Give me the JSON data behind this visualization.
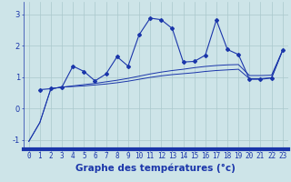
{
  "xlabel": "Graphe des températures (°c)",
  "xlim": [
    -0.5,
    23.5
  ],
  "ylim": [
    -1.3,
    3.4
  ],
  "yticks": [
    -1,
    0,
    1,
    2,
    3
  ],
  "xticks": [
    0,
    1,
    2,
    3,
    4,
    5,
    6,
    7,
    8,
    9,
    10,
    11,
    12,
    13,
    14,
    15,
    16,
    17,
    18,
    19,
    20,
    21,
    22,
    23
  ],
  "background_color": "#cde4e8",
  "grid_color": "#aac8cc",
  "line_color": "#1a35aa",
  "marker_color": "#1a35aa",
  "series1_x": [
    0,
    1,
    2,
    3,
    4,
    5,
    6,
    7,
    8,
    9,
    10,
    11,
    12,
    13,
    14,
    15,
    16,
    17,
    18,
    19,
    20,
    21,
    22,
    23
  ],
  "series1_y": [
    -1.05,
    -0.45,
    0.63,
    0.68,
    0.7,
    0.72,
    0.75,
    0.78,
    0.82,
    0.87,
    0.93,
    0.99,
    1.04,
    1.08,
    1.11,
    1.14,
    1.18,
    1.21,
    1.23,
    1.25,
    0.95,
    0.95,
    0.98,
    1.85
  ],
  "series2_x": [
    0,
    1,
    2,
    3,
    4,
    5,
    6,
    7,
    8,
    9,
    10,
    11,
    12,
    13,
    14,
    15,
    16,
    17,
    18,
    19,
    20,
    21,
    22,
    23
  ],
  "series2_y": [
    -1.05,
    -0.45,
    0.63,
    0.68,
    0.72,
    0.76,
    0.8,
    0.85,
    0.9,
    0.96,
    1.03,
    1.1,
    1.16,
    1.21,
    1.25,
    1.3,
    1.34,
    1.37,
    1.39,
    1.4,
    1.05,
    1.05,
    1.06,
    1.85
  ],
  "series3_x": [
    1,
    2,
    3,
    4,
    5,
    6,
    7,
    8,
    9,
    10,
    11,
    12,
    13,
    14,
    15,
    16,
    17,
    18,
    19,
    20,
    21,
    22,
    23
  ],
  "series3_y": [
    0.6,
    0.63,
    0.68,
    1.35,
    1.18,
    0.88,
    1.1,
    1.65,
    1.35,
    2.35,
    2.88,
    2.83,
    2.55,
    1.48,
    1.5,
    1.7,
    2.82,
    1.88,
    1.72,
    0.93,
    0.93,
    0.97,
    1.85
  ],
  "xlabel_fontsize": 7.5,
  "tick_fontsize": 5.5,
  "tick_color": "#1a35aa",
  "ylabel_fontsize": 6
}
